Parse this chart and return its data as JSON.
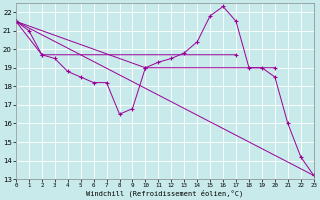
{
  "xlabel": "Windchill (Refroidissement éolien,°C)",
  "xlim": [
    0,
    23
  ],
  "ylim": [
    13,
    22.5
  ],
  "xticks": [
    0,
    1,
    2,
    3,
    4,
    5,
    6,
    7,
    8,
    9,
    10,
    11,
    12,
    13,
    14,
    15,
    16,
    17,
    18,
    19,
    20,
    21,
    22,
    23
  ],
  "yticks": [
    13,
    14,
    15,
    16,
    17,
    18,
    19,
    20,
    21,
    22
  ],
  "bg_color": "#c8eaea",
  "line_color": "#990099",
  "grid_color": "#ffffff",
  "series": [
    {
      "x": [
        0,
        1,
        2,
        3,
        4,
        5,
        6,
        7,
        8,
        9,
        10,
        11,
        12,
        13,
        14,
        15,
        16,
        17,
        18,
        19,
        20,
        21,
        22,
        23
      ],
      "y": [
        21.5,
        21.0,
        19.7,
        19.5,
        18.8,
        18.5,
        18.2,
        18.2,
        16.5,
        16.8,
        19.0,
        19.3,
        19.5,
        19.8,
        20.4,
        21.8,
        22.3,
        21.5,
        19.0,
        19.0,
        18.5,
        16.0,
        14.2,
        13.2
      ]
    },
    {
      "x": [
        0,
        23
      ],
      "y": [
        21.5,
        13.2
      ]
    },
    {
      "x": [
        0,
        2,
        17
      ],
      "y": [
        21.5,
        19.7,
        19.7
      ]
    },
    {
      "x": [
        0,
        10,
        20
      ],
      "y": [
        21.5,
        19.0,
        19.0
      ]
    }
  ]
}
